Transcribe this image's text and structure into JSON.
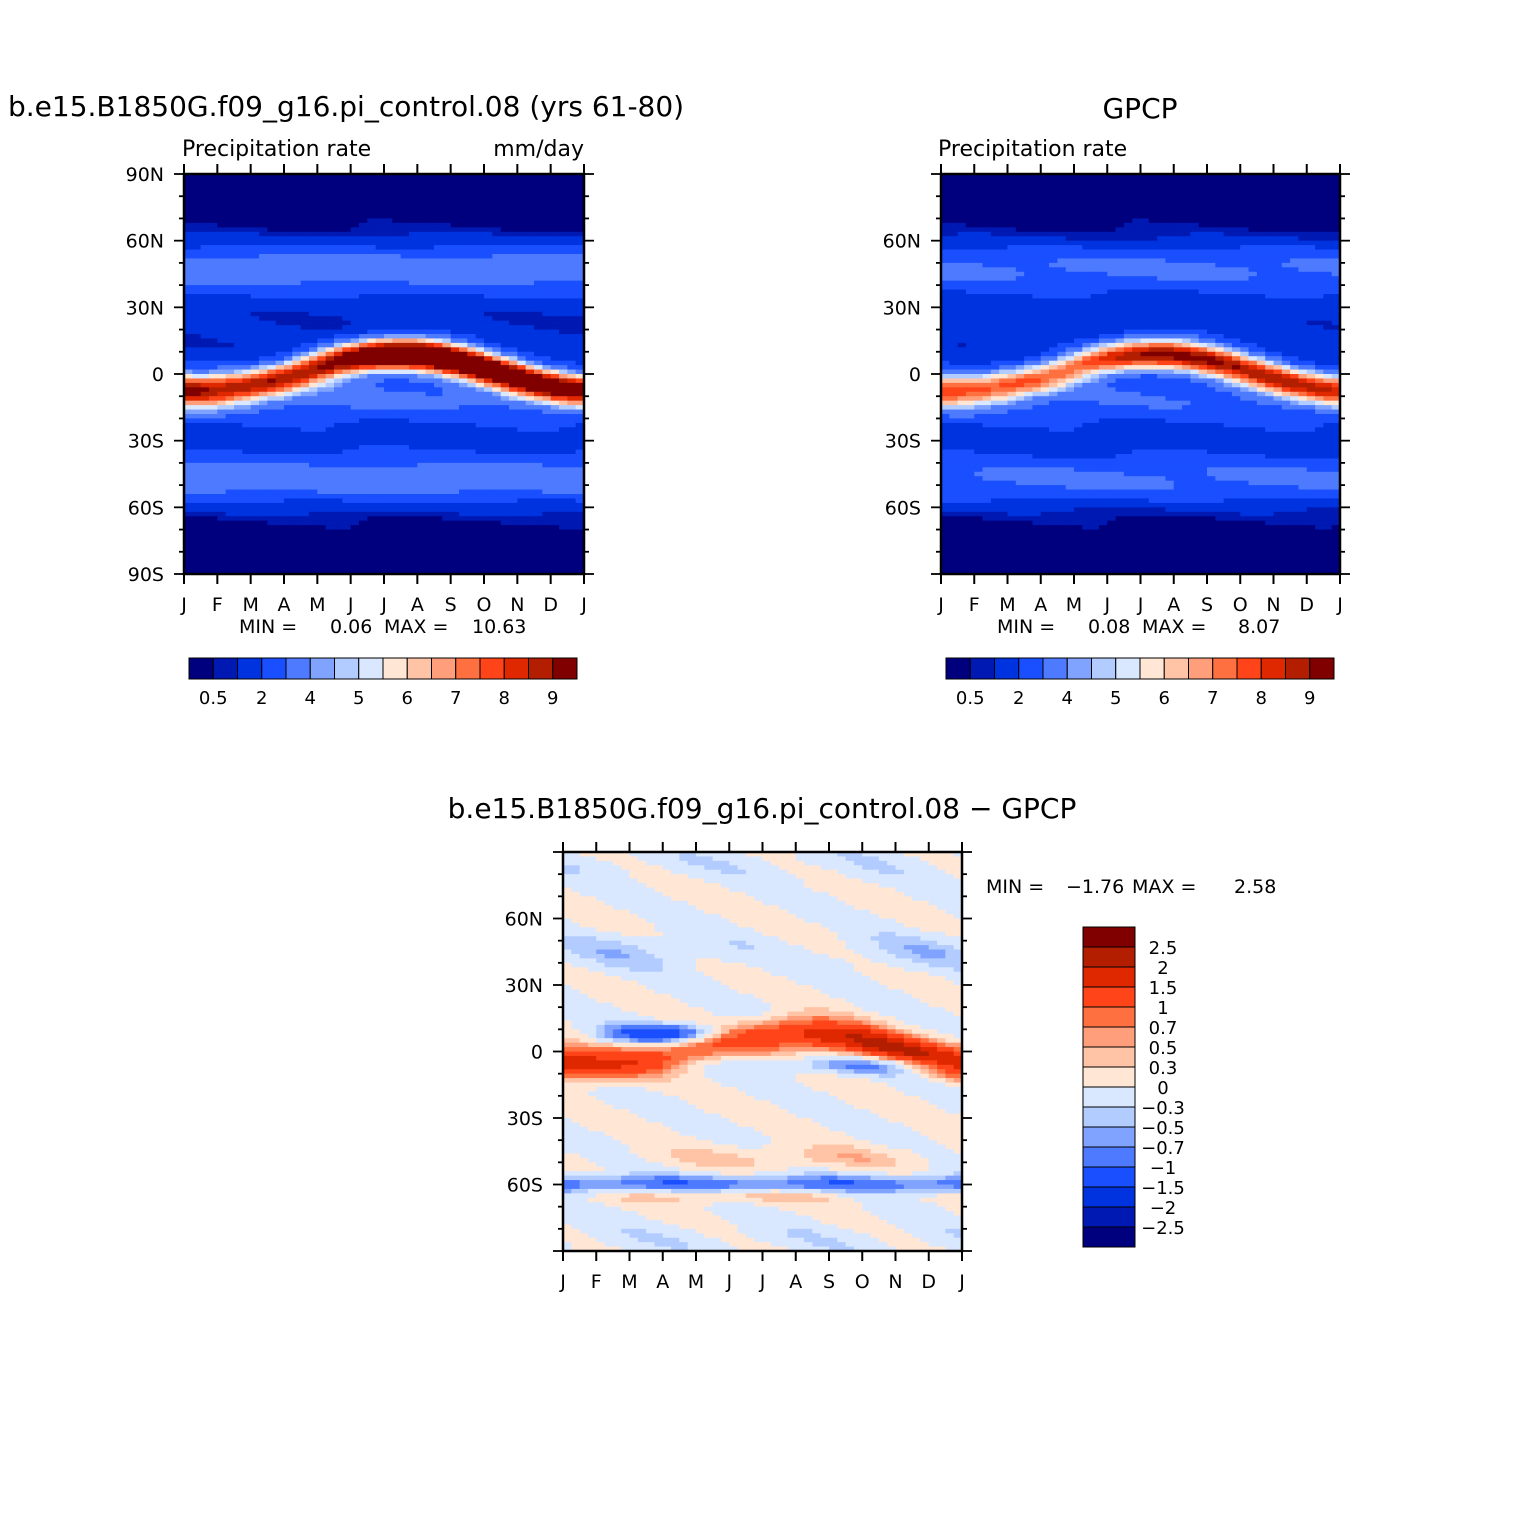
{
  "chart_data": [
    {
      "type": "heatmap",
      "title": "b.e15.B1850G.f09_g16.pi_control.08 (yrs 61-80)",
      "subtitle_left": "Precipitation rate",
      "subtitle_right": "mm/day",
      "x_ticklabels": [
        "J",
        "F",
        "M",
        "A",
        "M",
        "J",
        "J",
        "A",
        "S",
        "O",
        "N",
        "D",
        "J"
      ],
      "y_ticklabels": [
        "90N",
        "60N",
        "30N",
        "0",
        "30S",
        "60S",
        "90S"
      ],
      "y_tick_values": [
        90,
        60,
        30,
        0,
        -30,
        -60,
        -90
      ],
      "ylim": [
        -90,
        90
      ],
      "min_label": "MIN =",
      "min_value": "0.06",
      "max_label": "MAX =",
      "max_value": "10.63",
      "colorbar_levels": [
        "0.5",
        "2",
        "4",
        "5",
        "6",
        "7",
        "8",
        "9"
      ],
      "colors": [
        "#00007f",
        "#0019b2",
        "#0033e0",
        "#1a4fff",
        "#4d7aff",
        "#80a3ff",
        "#b3ccff",
        "#d9e8ff",
        "#ffe6d5",
        "#ffc4a6",
        "#ff9e7a",
        "#ff7040",
        "#ff4419",
        "#e02800",
        "#b31e00",
        "#800000"
      ],
      "field": {
        "itcz_peak": 10.6,
        "itcz_min": 6.2,
        "secondary_band": 3.5,
        "subtropical_dry": 1.0,
        "polar": 0.3
      }
    },
    {
      "type": "heatmap",
      "title": "GPCP",
      "subtitle_left": "Precipitation rate",
      "subtitle_right": "",
      "x_ticklabels": [
        "J",
        "F",
        "M",
        "A",
        "M",
        "J",
        "J",
        "A",
        "S",
        "O",
        "N",
        "D",
        "J"
      ],
      "y_ticklabels": [
        "60N",
        "30N",
        "0",
        "30S",
        "60S"
      ],
      "y_tick_values": [
        60,
        30,
        0,
        -30,
        -60
      ],
      "ylim": [
        -90,
        90
      ],
      "min_label": "MIN =",
      "min_value": "0.08",
      "max_label": "MAX =",
      "max_value": "8.07",
      "colorbar_levels": [
        "0.5",
        "2",
        "4",
        "5",
        "6",
        "7",
        "8",
        "9"
      ],
      "colors": [
        "#00007f",
        "#0019b2",
        "#0033e0",
        "#1a4fff",
        "#4d7aff",
        "#80a3ff",
        "#b3ccff",
        "#d9e8ff",
        "#ffe6d5",
        "#ffc4a6",
        "#ff9e7a",
        "#ff7040",
        "#ff4419",
        "#e02800",
        "#b31e00",
        "#800000"
      ],
      "field": {
        "itcz_peak": 8.0,
        "itcz_min": 5.2,
        "secondary_band": 3.0,
        "subtropical_dry": 1.2,
        "polar": 0.4
      }
    },
    {
      "type": "heatmap",
      "title": "b.e15.B1850G.f09_g16.pi_control.08 − GPCP",
      "x_ticklabels": [
        "J",
        "F",
        "M",
        "A",
        "M",
        "J",
        "J",
        "A",
        "S",
        "O",
        "N",
        "D",
        "J"
      ],
      "y_ticklabels": [
        "60N",
        "30N",
        "0",
        "30S",
        "60S"
      ],
      "y_tick_values": [
        60,
        30,
        0,
        -30,
        -60
      ],
      "ylim": [
        -90,
        90
      ],
      "min_label": "MIN =",
      "min_value": "−1.76",
      "max_label": "MAX =",
      "max_value": "2.58",
      "colorbar_levels": [
        "2.5",
        "2",
        "1.5",
        "1",
        "0.7",
        "0.5",
        "0.3",
        "0",
        "−0.3",
        "−0.5",
        "−0.7",
        "−1",
        "−1.5",
        "−2",
        "−2.5"
      ],
      "colors": [
        "#800000",
        "#b31e00",
        "#e02800",
        "#ff4419",
        "#ff7040",
        "#ff9e7a",
        "#ffc4a6",
        "#ffe6d5",
        "#d9e8ff",
        "#b3ccff",
        "#80a3ff",
        "#4d7aff",
        "#1a4fff",
        "#0033e0",
        "#0019b2",
        "#00007f"
      ],
      "field": {
        "max": 2.58,
        "min": -1.76
      }
    }
  ]
}
